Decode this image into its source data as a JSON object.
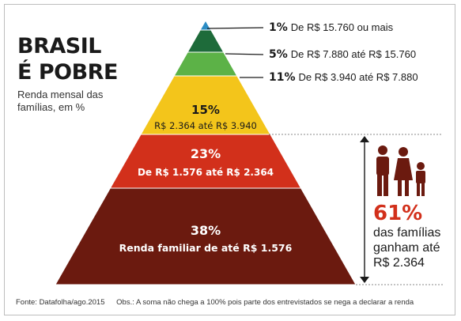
{
  "title": {
    "line1": "BRASIL",
    "line2": "É POBRE"
  },
  "subtitle": "Renda mensal das famílias, em %",
  "chart_data": {
    "type": "pyramid",
    "unit": "%",
    "tiers": [
      {
        "pct_label": "1%",
        "range": "De R$ 15.760 ou mais",
        "value": 1,
        "color": "#2b8cc4"
      },
      {
        "pct_label": "5%",
        "range": "De R$ 7.880 até R$ 15.760",
        "value": 5,
        "color": "#1e6b3a"
      },
      {
        "pct_label": "11%",
        "range": "De R$ 3.940 até R$ 7.880",
        "value": 11,
        "color": "#5cb247"
      },
      {
        "pct_label": "15%",
        "range": "R$ 2.364 até R$ 3.940",
        "value": 15,
        "color": "#f3c51b"
      },
      {
        "pct_label": "23%",
        "range": "De R$ 1.576 até R$ 2.364",
        "value": 23,
        "color": "#d2301b"
      },
      {
        "pct_label": "38%",
        "range": "Renda familiar de até R$ 1.576",
        "value": 38,
        "color": "#6b1a0f"
      }
    ]
  },
  "summary": {
    "pct": "61%",
    "line1": "das famílias",
    "line2": "ganham até",
    "line3": "R$ 2.364"
  },
  "footer": {
    "source": "Fonte: Datafolha/ago.2015",
    "note": "Obs.: A soma não chega a 100% pois parte dos entrevistados se nega a declarar a renda"
  }
}
